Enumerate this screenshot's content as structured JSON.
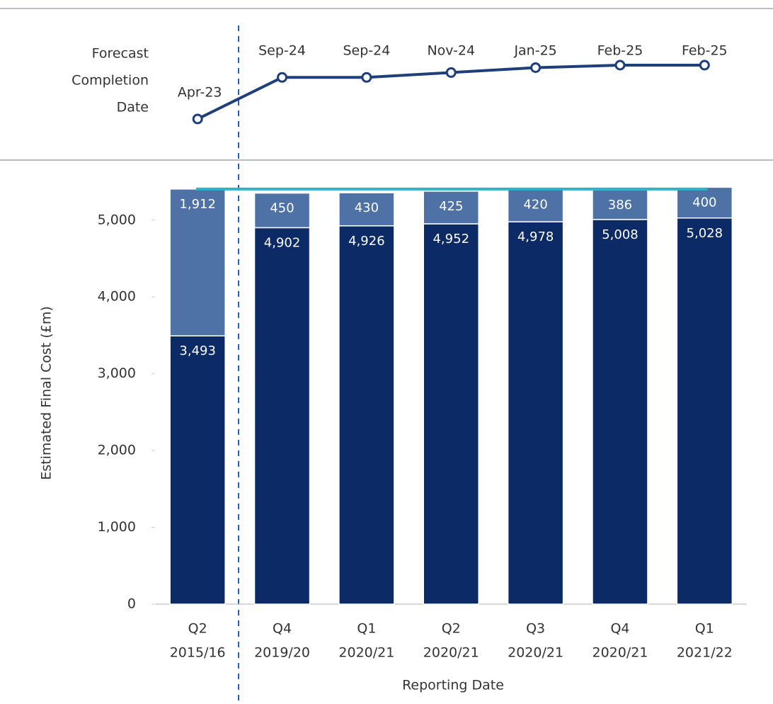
{
  "chart_data": [
    {
      "type": "line",
      "title": [
        "Forecast",
        "Completion",
        "Date"
      ],
      "values": [
        "2023-04",
        "2024-09",
        "2024-09",
        "2024-11",
        "2025-01",
        "2025-02",
        "2025-02"
      ],
      "value_labels": [
        "Apr-23",
        "Sep-24",
        "Sep-24",
        "Nov-24",
        "Jan-25",
        "Feb-25",
        "Feb-25"
      ],
      "color": "#1f3f7a"
    },
    {
      "type": "bar",
      "stacked": true,
      "categories": [
        [
          "Q2",
          "2015/16"
        ],
        [
          "Q4",
          "2019/20"
        ],
        [
          "Q1",
          "2020/21"
        ],
        [
          "Q2",
          "2020/21"
        ],
        [
          "Q3",
          "2020/21"
        ],
        [
          "Q4",
          "2020/21"
        ],
        [
          "Q1",
          "2021/22"
        ]
      ],
      "series": [
        {
          "color": "#0b2a66",
          "values": [
            3493,
            4902,
            4926,
            4952,
            4978,
            5008,
            5028
          ],
          "value_labels": [
            "3,493",
            "4,902",
            "4,926",
            "4,952",
            "4,978",
            "5,008",
            "5,028"
          ]
        },
        {
          "color": "#4f72a6",
          "values": [
            1912,
            450,
            430,
            425,
            420,
            386,
            400
          ],
          "value_labels": [
            "1,912",
            "450",
            "430",
            "425",
            "420",
            "386",
            "400"
          ]
        }
      ],
      "reference_line": {
        "value": 5405,
        "color": "#2bb5c8"
      },
      "ylabel": "Estimated Final Cost (£m)",
      "xlabel": "Reporting Date",
      "ylim": [
        0,
        5450
      ],
      "yticks": [
        0,
        {
          "value": 1000,
          "label": "1,000"
        },
        {
          "value": 2000,
          "label": "2,000"
        },
        {
          "value": 3000,
          "label": "3,000"
        },
        {
          "value": 4000,
          "label": "4,000"
        },
        {
          "value": 5000,
          "label": "5,000"
        }
      ]
    }
  ]
}
